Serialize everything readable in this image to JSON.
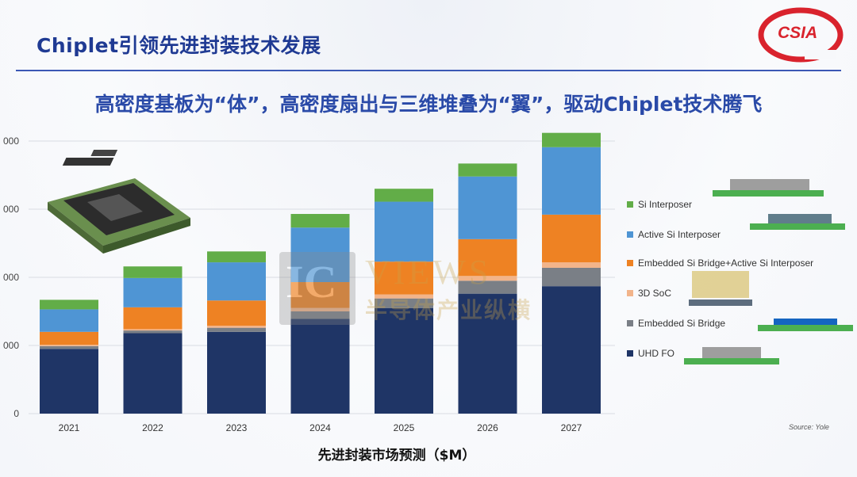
{
  "page": {
    "title": "Chiplet引领先进封装技术发展",
    "subtitle": "高密度基板为“体”，高密度扇出与三维堆叠为“翼”，驱动Chiplet技术腾飞",
    "logo_text": "CSIA",
    "source": "Source: Yole",
    "watermark": {
      "brand": "IC",
      "brand_suffix": "VIEWS",
      "cn": "半导体产业纵横"
    }
  },
  "colors": {
    "title": "#1f3a93",
    "rule": "#3b58b5",
    "logo": "#d9232d"
  },
  "chart_data": {
    "type": "bar",
    "stacked": true,
    "xlabel": "先进封装市场预测（$M）",
    "ylabel": "",
    "categories": [
      "2021",
      "2022",
      "2023",
      "2024",
      "2025",
      "2026",
      "2027"
    ],
    "ylim": [
      0,
      4000
    ],
    "yticks": [
      0,
      1000,
      2000,
      3000,
      4000
    ],
    "ytick_labels": [
      "0",
      "000",
      "000",
      "000",
      "000"
    ],
    "grid": true,
    "legend_position": "right",
    "series": [
      {
        "name": "UHD FO",
        "color": "#1f3566",
        "values": [
          950,
          1180,
          1200,
          1390,
          1550,
          1760,
          1870
        ]
      },
      {
        "name": "Embedded Si Bridge",
        "color": "#7a7f86",
        "values": [
          40,
          40,
          60,
          110,
          140,
          190,
          270
        ]
      },
      {
        "name": "3D SoC",
        "color": "#f2b48a",
        "values": [
          20,
          20,
          30,
          50,
          60,
          70,
          80
        ]
      },
      {
        "name": "Embedded Si Bridge+Active Si Interposer",
        "color": "#ee8223",
        "values": [
          190,
          320,
          370,
          380,
          480,
          540,
          700
        ]
      },
      {
        "name": "Active Si Interposer",
        "color": "#4f95d4",
        "values": [
          330,
          430,
          560,
          800,
          880,
          920,
          990
        ]
      },
      {
        "name": "Si Interposer",
        "color": "#62ad48",
        "values": [
          140,
          170,
          160,
          200,
          190,
          190,
          210
        ]
      }
    ]
  }
}
